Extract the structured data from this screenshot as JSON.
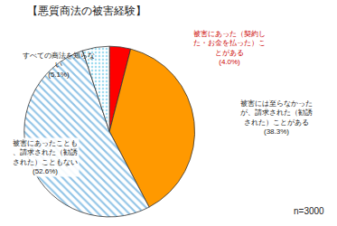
{
  "chart_data": {
    "type": "pie",
    "title": "【悪質商法の被害経験】",
    "annotations": [
      "n=3000"
    ],
    "categories": [
      "被害にあった（契約した・お金を払った）ことがある",
      "被害には至らなかったが、請求された（勧誘された）ことがある",
      "被害にあったことも、請求された（勧誘された）こともない",
      "すべての商法を知らない"
    ],
    "values": [
      4.0,
      38.3,
      52.6,
      5.1
    ],
    "value_labels": [
      "(4.0%)",
      "(38.3%)",
      "(52.6%)",
      "(5.1%)"
    ],
    "colors": [
      "#ff0000",
      "#ff9900",
      "#8fc3e6",
      "#9fdcf0"
    ],
    "data_labels": true
  }
}
